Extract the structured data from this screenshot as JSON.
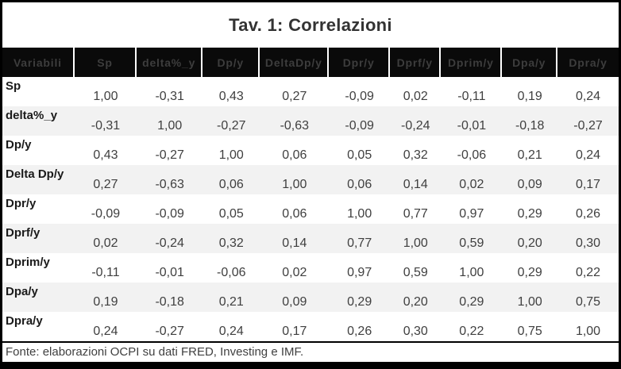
{
  "title": "Tav. 1: Correlazioni",
  "footer": {
    "source_note": "Fonte: elaborazioni OCPI su dati FRED, Investing e IMF."
  },
  "colors": {
    "border": "#000000",
    "header_bg": "#0a0a0a",
    "header_text": "#3d3d3d",
    "row_bg": "#ffffff",
    "row_alt_bg": "#f2f2f2",
    "label_text": "#1a1a1a",
    "value_text": "#3f3f3f",
    "title_text": "#333333"
  },
  "chart_data": {
    "type": "table",
    "title": "Tav. 1: Correlazioni",
    "decimal_separator": ",",
    "columns": [
      "Variabili",
      "Sp",
      "delta%_y",
      "Dp/y",
      "DeltaDp/y",
      "Dpr/y",
      "Dprf/y",
      "Dprim/y",
      "Dpa/y",
      "Dpra/y"
    ],
    "rows": [
      {
        "label": "Sp",
        "values": [
          "1,00",
          "-0,31",
          "0,43",
          "0,27",
          "-0,09",
          "0,02",
          "-0,11",
          "0,19",
          "0,24"
        ]
      },
      {
        "label": "delta%_y",
        "values": [
          "-0,31",
          "1,00",
          "-0,27",
          "-0,63",
          "-0,09",
          "-0,24",
          "-0,01",
          "-0,18",
          "-0,27"
        ]
      },
      {
        "label": "Dp/y",
        "values": [
          "0,43",
          "-0,27",
          "1,00",
          "0,06",
          "0,05",
          "0,32",
          "-0,06",
          "0,21",
          "0,24"
        ]
      },
      {
        "label": "Delta Dp/y",
        "values": [
          "0,27",
          "-0,63",
          "0,06",
          "1,00",
          "0,06",
          "0,14",
          "0,02",
          "0,09",
          "0,17"
        ]
      },
      {
        "label": "Dpr/y",
        "values": [
          "-0,09",
          "-0,09",
          "0,05",
          "0,06",
          "1,00",
          "0,77",
          "0,97",
          "0,29",
          "0,26"
        ]
      },
      {
        "label": "Dprf/y",
        "values": [
          "0,02",
          "-0,24",
          "0,32",
          "0,14",
          "0,77",
          "1,00",
          "0,59",
          "0,20",
          "0,30"
        ]
      },
      {
        "label": "Dprim/y",
        "values": [
          "-0,11",
          "-0,01",
          "-0,06",
          "0,02",
          "0,97",
          "0,59",
          "1,00",
          "0,29",
          "0,22"
        ]
      },
      {
        "label": "Dpa/y",
        "values": [
          "0,19",
          "-0,18",
          "0,21",
          "0,09",
          "0,29",
          "0,20",
          "0,29",
          "1,00",
          "0,75"
        ]
      },
      {
        "label": "Dpra/y",
        "values": [
          "0,24",
          "-0,27",
          "0,24",
          "0,17",
          "0,26",
          "0,30",
          "0,22",
          "0,75",
          "1,00"
        ]
      }
    ],
    "source_note": "Fonte: elaborazioni OCPI su dati FRED, Investing e IMF."
  }
}
